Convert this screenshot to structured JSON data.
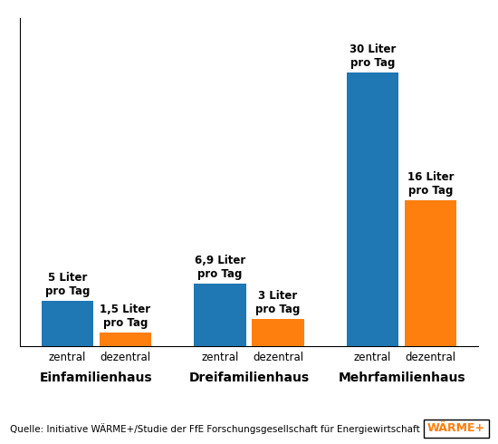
{
  "chart_data": {
    "type": "bar",
    "categories": [
      "Einfamilienhaus",
      "Dreifamilienhaus",
      "Mehrfamilienhaus"
    ],
    "series": [
      {
        "name": "zentral",
        "values": [
          5,
          6.9,
          30
        ],
        "value_labels": [
          "5 Liter\npro Tag",
          "6,9 Liter\npro Tag",
          "30 Liter\npro Tag"
        ]
      },
      {
        "name": "dezentral",
        "values": [
          1.5,
          3,
          16
        ],
        "value_labels": [
          "1,5 Liter\npro Tag",
          "3 Liter\npro Tag",
          "16 Liter\npro Tag"
        ]
      }
    ],
    "ylim": [
      0,
      36
    ],
    "data_labels": true,
    "tick_labels": false,
    "grid": false,
    "annotations": [
      "Quelle: Initiative WÄRME+/Studie der FfE Forschungsgesellschaft für Energiewirtschaft",
      "WÄRME+"
    ]
  }
}
